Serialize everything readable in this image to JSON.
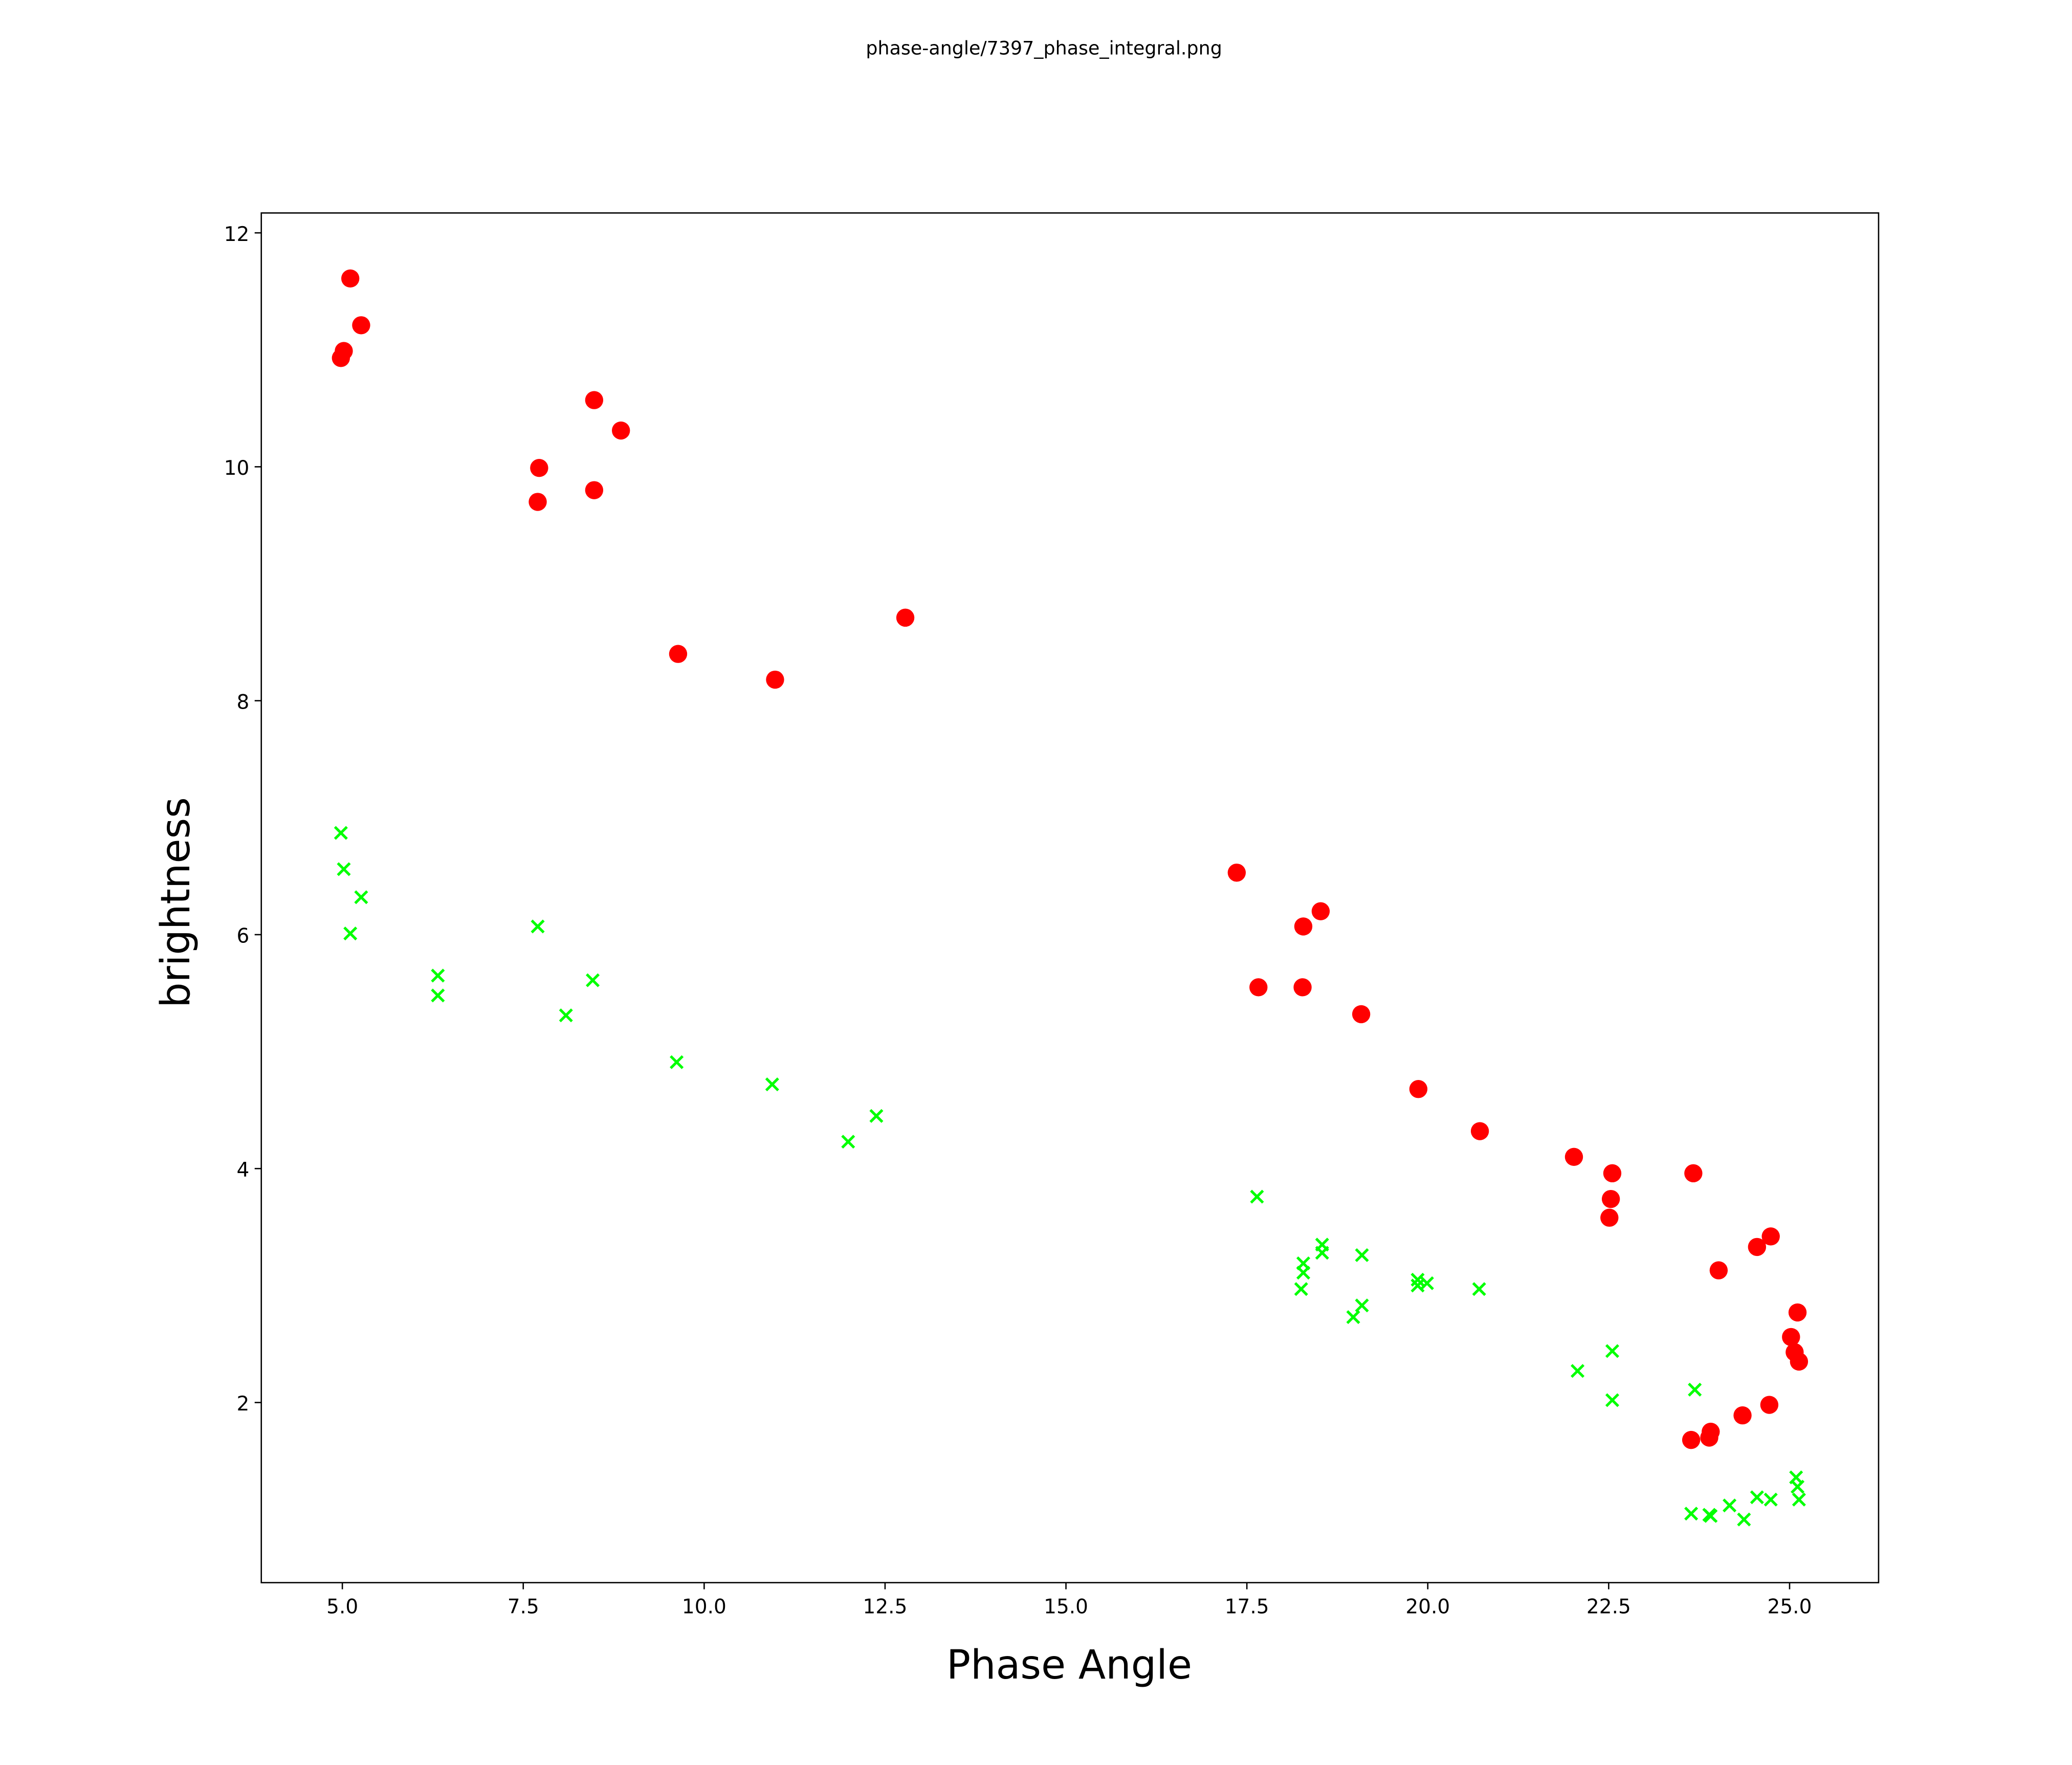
{
  "chart_data": {
    "type": "scatter",
    "title": "phase-angle/7397_phase_integral.png",
    "xlabel": "Phase Angle",
    "ylabel": "brightness",
    "xlim": [
      3.88,
      26.23
    ],
    "ylim": [
      0.46,
      12.17
    ],
    "xticks": [
      5.0,
      7.5,
      10.0,
      12.5,
      15.0,
      17.5,
      20.0,
      22.5,
      25.0
    ],
    "xtick_labels": [
      "5.0",
      "7.5",
      "10.0",
      "12.5",
      "15.0",
      "17.5",
      "20.0",
      "22.5",
      "25.0"
    ],
    "yticks": [
      2,
      4,
      6,
      8,
      10,
      12
    ],
    "ytick_labels": [
      "2",
      "4",
      "6",
      "8",
      "10",
      "12"
    ],
    "grid": false,
    "series": [
      {
        "name": "red-circles",
        "marker": "circle",
        "color": "#ff0000",
        "points": [
          [
            5.11,
            11.61
          ],
          [
            5.26,
            11.21
          ],
          [
            5.02,
            10.99
          ],
          [
            4.98,
            10.93
          ],
          [
            8.48,
            10.57
          ],
          [
            8.85,
            10.31
          ],
          [
            7.72,
            9.99
          ],
          [
            7.7,
            9.7
          ],
          [
            8.48,
            9.8
          ],
          [
            9.64,
            8.4
          ],
          [
            10.98,
            8.18
          ],
          [
            12.78,
            8.71
          ],
          [
            17.36,
            6.53
          ],
          [
            17.66,
            5.55
          ],
          [
            18.28,
            6.07
          ],
          [
            18.52,
            6.2
          ],
          [
            18.27,
            5.55
          ],
          [
            19.08,
            5.32
          ],
          [
            19.87,
            4.68
          ],
          [
            20.72,
            4.32
          ],
          [
            22.02,
            4.1
          ],
          [
            22.55,
            3.96
          ],
          [
            22.53,
            3.74
          ],
          [
            22.51,
            3.58
          ],
          [
            23.67,
            3.96
          ],
          [
            24.02,
            3.13
          ],
          [
            24.55,
            3.33
          ],
          [
            24.74,
            3.42
          ],
          [
            25.11,
            2.77
          ],
          [
            25.02,
            2.56
          ],
          [
            25.07,
            2.43
          ],
          [
            25.13,
            2.35
          ],
          [
            24.72,
            1.98
          ],
          [
            24.35,
            1.89
          ],
          [
            23.91,
            1.75
          ],
          [
            23.89,
            1.7
          ],
          [
            23.64,
            1.68
          ]
        ]
      },
      {
        "name": "green-crosses",
        "marker": "x",
        "color": "#00ff00",
        "points": [
          [
            4.98,
            6.87
          ],
          [
            5.02,
            6.56
          ],
          [
            5.26,
            6.32
          ],
          [
            5.11,
            6.01
          ],
          [
            6.32,
            5.65
          ],
          [
            6.32,
            5.48
          ],
          [
            7.7,
            6.07
          ],
          [
            8.46,
            5.61
          ],
          [
            8.09,
            5.31
          ],
          [
            9.62,
            4.91
          ],
          [
            10.94,
            4.72
          ],
          [
            12.38,
            4.45
          ],
          [
            11.99,
            4.23
          ],
          [
            17.64,
            3.76
          ],
          [
            18.28,
            3.19
          ],
          [
            18.28,
            3.11
          ],
          [
            18.25,
            2.97
          ],
          [
            18.54,
            3.35
          ],
          [
            18.54,
            3.28
          ],
          [
            19.09,
            3.26
          ],
          [
            18.97,
            2.73
          ],
          [
            19.09,
            2.83
          ],
          [
            19.86,
            3.05
          ],
          [
            19.86,
            3.0
          ],
          [
            19.99,
            3.02
          ],
          [
            20.71,
            2.97
          ],
          [
            22.07,
            2.27
          ],
          [
            22.55,
            2.44
          ],
          [
            22.55,
            2.02
          ],
          [
            23.69,
            2.11
          ],
          [
            23.64,
            1.05
          ],
          [
            23.91,
            1.03
          ],
          [
            23.89,
            1.04
          ],
          [
            24.17,
            1.12
          ],
          [
            24.37,
            1.0
          ],
          [
            24.55,
            1.19
          ],
          [
            24.74,
            1.17
          ],
          [
            25.09,
            1.36
          ],
          [
            25.11,
            1.28
          ],
          [
            25.13,
            1.17
          ]
        ]
      }
    ]
  }
}
